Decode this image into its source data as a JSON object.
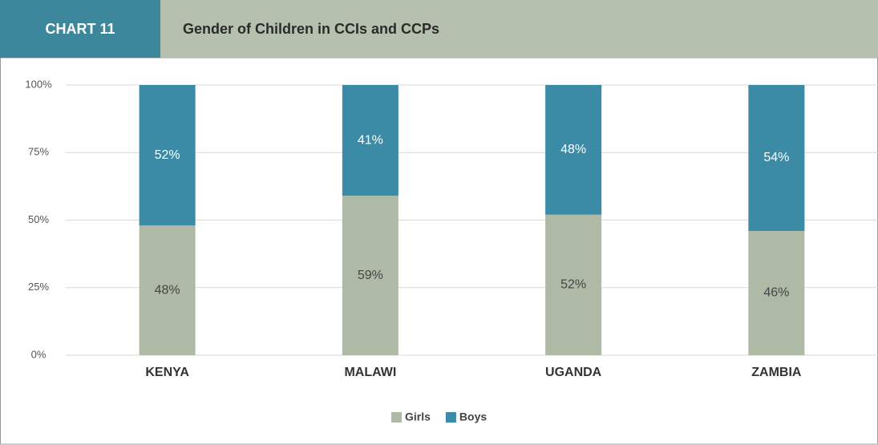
{
  "chart_data": {
    "type": "stacked_bar",
    "chart_label": "CHART 11",
    "title": "Gender of Children in CCIs and CCPs",
    "categories": [
      "KENYA",
      "MALAWI",
      "UGANDA",
      "ZAMBIA"
    ],
    "series": [
      {
        "name": "Girls",
        "color": "#aebaa6",
        "values": [
          48,
          59,
          52,
          46
        ],
        "value_labels": [
          "48%",
          "59%",
          "52%",
          "46%"
        ]
      },
      {
        "name": "Boys",
        "color": "#3b8ba6",
        "values": [
          52,
          41,
          48,
          54
        ],
        "value_labels": [
          "52%",
          "41%",
          "48%",
          "54%"
        ]
      }
    ],
    "ylim": [
      0,
      100
    ],
    "yticks": [
      {
        "value": 0,
        "label": "0%"
      },
      {
        "value": 25,
        "label": "25%"
      },
      {
        "value": 50,
        "label": "50%"
      },
      {
        "value": 75,
        "label": "75%"
      },
      {
        "value": 100,
        "label": "100%"
      }
    ],
    "grid": true,
    "legend": "bottom"
  }
}
